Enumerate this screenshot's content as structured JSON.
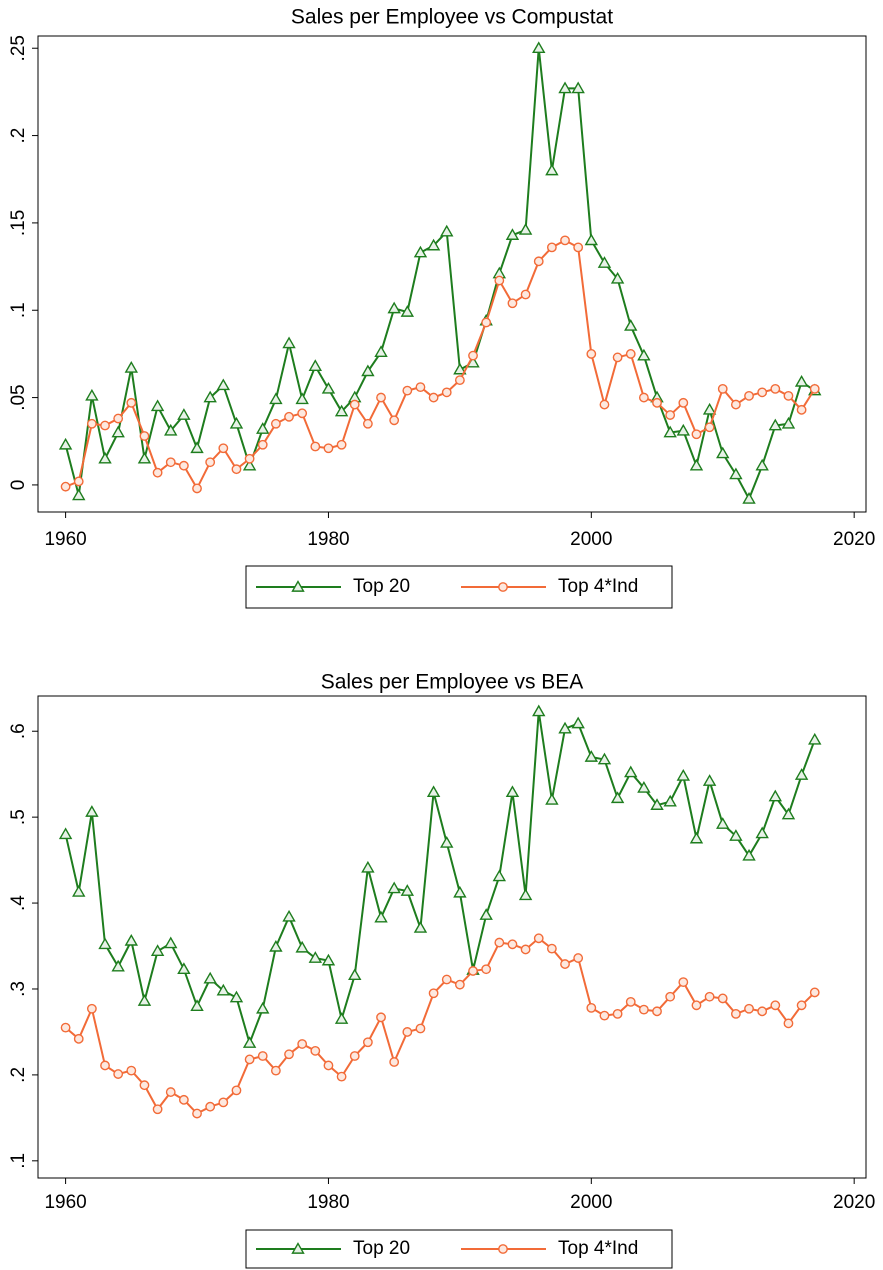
{
  "chart_data": [
    {
      "type": "line",
      "title": "Sales per Employee vs Compustat",
      "x": [
        1960,
        1961,
        1962,
        1963,
        1964,
        1965,
        1966,
        1967,
        1968,
        1969,
        1970,
        1971,
        1972,
        1973,
        1974,
        1975,
        1976,
        1977,
        1978,
        1979,
        1980,
        1981,
        1982,
        1983,
        1984,
        1985,
        1986,
        1987,
        1988,
        1989,
        1990,
        1991,
        1992,
        1993,
        1994,
        1995,
        1996,
        1997,
        1998,
        1999,
        2000,
        2001,
        2002,
        2003,
        2004,
        2005,
        2006,
        2007,
        2008,
        2009,
        2010,
        2011,
        2012,
        2013,
        2014,
        2015,
        2016,
        2017
      ],
      "series": [
        {
          "name": "Top 20",
          "color": "#1e7d1e",
          "marker": "triangle",
          "values": [
            0.023,
            -0.006,
            0.051,
            0.015,
            0.03,
            0.067,
            0.015,
            0.045,
            0.031,
            0.04,
            0.021,
            0.05,
            0.057,
            0.035,
            0.011,
            0.032,
            0.049,
            0.081,
            0.049,
            0.068,
            0.055,
            0.042,
            0.05,
            0.065,
            0.076,
            0.101,
            0.099,
            0.133,
            0.137,
            0.145,
            0.066,
            0.07,
            0.094,
            0.121,
            0.143,
            0.146,
            0.25,
            0.18,
            0.227,
            0.227,
            0.14,
            0.127,
            0.118,
            0.091,
            0.074,
            0.05,
            0.03,
            0.031,
            0.011,
            0.043,
            0.018,
            0.006,
            -0.008,
            0.011,
            0.034,
            0.035,
            0.059,
            0.054
          ]
        },
        {
          "name": "Top 4*Ind",
          "color": "#f26b38",
          "marker": "circle",
          "values": [
            -0.001,
            0.002,
            0.035,
            0.034,
            0.038,
            0.047,
            0.028,
            0.007,
            0.013,
            0.011,
            -0.002,
            0.013,
            0.021,
            0.009,
            0.015,
            0.023,
            0.035,
            0.039,
            0.041,
            0.022,
            0.021,
            0.023,
            0.046,
            0.035,
            0.05,
            0.037,
            0.054,
            0.056,
            0.05,
            0.053,
            0.06,
            0.074,
            0.093,
            0.117,
            0.104,
            0.109,
            0.128,
            0.136,
            0.14,
            0.136,
            0.075,
            0.046,
            0.073,
            0.075,
            0.05,
            0.047,
            0.04,
            0.047,
            0.029,
            0.033,
            0.055,
            0.046,
            0.051,
            0.053,
            0.055,
            0.051,
            0.043,
            0.055
          ]
        }
      ],
      "xlim": [
        1957.9,
        2020.9
      ],
      "xticks": [
        1960,
        1980,
        2000,
        2020
      ],
      "ylim": [
        -0.0155,
        0.257
      ],
      "yticks": [
        0,
        {
          "value": 0.05,
          "label": ".05"
        },
        {
          "value": 0.1,
          "label": ".1"
        },
        {
          "value": 0.15,
          "label": ".15"
        },
        {
          "value": 0.2,
          "label": ".2"
        },
        {
          "value": 0.25,
          "label": ".25"
        }
      ],
      "legend": "bottom"
    },
    {
      "type": "line",
      "title": "Sales per Employee vs BEA",
      "x": [
        1960,
        1961,
        1962,
        1963,
        1964,
        1965,
        1966,
        1967,
        1968,
        1969,
        1970,
        1971,
        1972,
        1973,
        1974,
        1975,
        1976,
        1977,
        1978,
        1979,
        1980,
        1981,
        1982,
        1983,
        1984,
        1985,
        1986,
        1987,
        1988,
        1989,
        1990,
        1991,
        1992,
        1993,
        1994,
        1995,
        1996,
        1997,
        1998,
        1999,
        2000,
        2001,
        2002,
        2003,
        2004,
        2005,
        2006,
        2007,
        2008,
        2009,
        2010,
        2011,
        2012,
        2013,
        2014,
        2015,
        2016,
        2017
      ],
      "series": [
        {
          "name": "Top 20",
          "color": "#1e7d1e",
          "marker": "triangle",
          "values": [
            0.48,
            0.413,
            0.506,
            0.352,
            0.326,
            0.356,
            0.286,
            0.344,
            0.353,
            0.323,
            0.28,
            0.312,
            0.298,
            0.29,
            0.237,
            0.277,
            0.349,
            0.384,
            0.348,
            0.336,
            0.333,
            0.265,
            0.316,
            0.441,
            0.383,
            0.417,
            0.414,
            0.371,
            0.529,
            0.47,
            0.412,
            0.322,
            0.386,
            0.431,
            0.529,
            0.409,
            0.623,
            0.52,
            0.603,
            0.609,
            0.57,
            0.567,
            0.522,
            0.552,
            0.534,
            0.514,
            0.518,
            0.548,
            0.475,
            0.542,
            0.492,
            0.478,
            0.455,
            0.481,
            0.524,
            0.503,
            0.549,
            0.59
          ]
        },
        {
          "name": "Top 4*Ind",
          "color": "#f26b38",
          "marker": "circle",
          "values": [
            0.255,
            0.242,
            0.277,
            0.211,
            0.201,
            0.205,
            0.188,
            0.16,
            0.18,
            0.171,
            0.155,
            0.163,
            0.168,
            0.182,
            0.218,
            0.222,
            0.205,
            0.224,
            0.236,
            0.228,
            0.211,
            0.198,
            0.222,
            0.238,
            0.267,
            0.215,
            0.25,
            0.254,
            0.295,
            0.311,
            0.305,
            0.321,
            0.323,
            0.354,
            0.352,
            0.346,
            0.359,
            0.347,
            0.329,
            0.336,
            0.278,
            0.269,
            0.271,
            0.285,
            0.276,
            0.274,
            0.291,
            0.308,
            0.281,
            0.291,
            0.289,
            0.271,
            0.277,
            0.274,
            0.281,
            0.26,
            0.281,
            0.296
          ]
        }
      ],
      "xlim": [
        1957.9,
        2020.9
      ],
      "xticks": [
        1960,
        1980,
        2000,
        2020
      ],
      "ylim": [
        0.08,
        0.641
      ],
      "yticks": [
        {
          "value": 0.1,
          "label": ".1"
        },
        {
          "value": 0.2,
          "label": ".2"
        },
        {
          "value": 0.3,
          "label": ".3"
        },
        {
          "value": 0.4,
          "label": ".4"
        },
        {
          "value": 0.5,
          "label": ".5"
        },
        {
          "value": 0.6,
          "label": ".6"
        }
      ],
      "legend": "bottom"
    }
  ]
}
